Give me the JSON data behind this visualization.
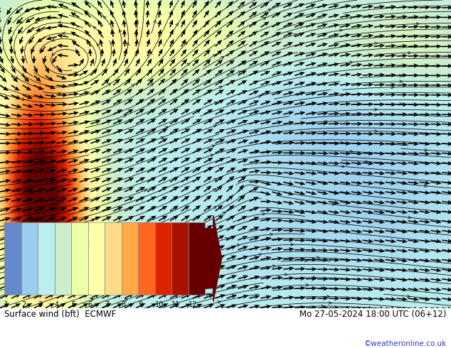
{
  "title_left": "Surface wind (bft)  ECMWF",
  "title_right": "Mo 27-05-2024 18:00 UTC (06+12)",
  "copyright": "©weatheronline.co.uk",
  "colorbar_levels": [
    1,
    2,
    3,
    4,
    5,
    6,
    7,
    8,
    9,
    10,
    11,
    12
  ],
  "colorbar_colors": [
    "#6688cc",
    "#99ccee",
    "#bbeeee",
    "#cceecc",
    "#eeffaa",
    "#ffffaa",
    "#ffdd88",
    "#ffaa44",
    "#ff6622",
    "#dd2200",
    "#aa1100",
    "#660000"
  ],
  "fig_width": 6.34,
  "fig_height": 4.9,
  "dpi": 100
}
